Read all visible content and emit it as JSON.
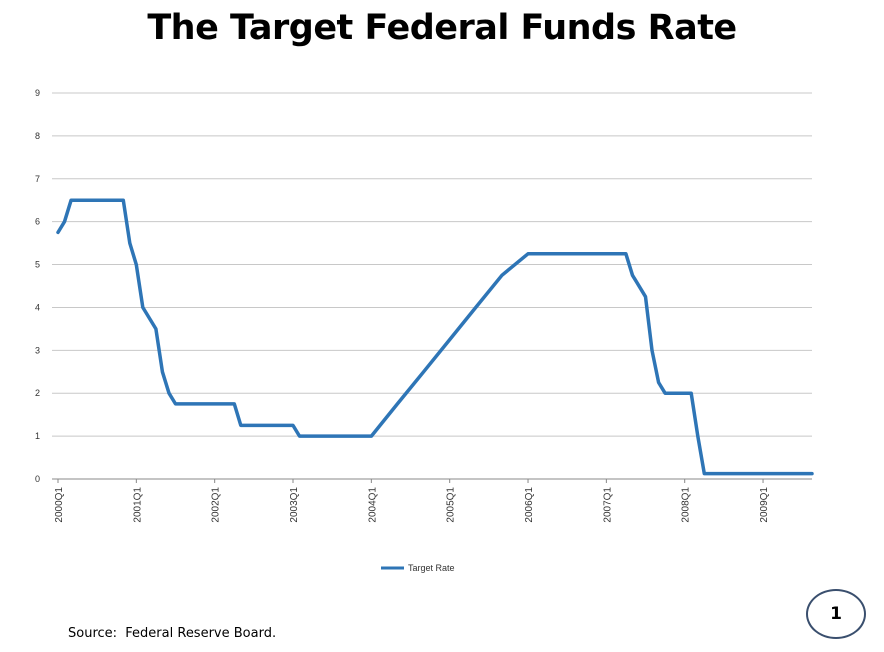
{
  "title": "The Target Federal Funds Rate",
  "source": "Source:  Federal Reserve Board.",
  "page_number": "1",
  "colors": {
    "series": "#2e75b6",
    "grid": "#c8c8c8",
    "axis": "#888888"
  },
  "chart_data": {
    "type": "line",
    "title": "The Target Federal Funds Rate",
    "xlabel": "",
    "ylabel": "",
    "ylim": [
      0,
      9
    ],
    "yticks": [
      0,
      1,
      2,
      3,
      4,
      5,
      6,
      7,
      8,
      9
    ],
    "xlim": [
      2000.0,
      2009.625
    ],
    "xticks": [
      {
        "x": 2000.0,
        "label": "2000Q1"
      },
      {
        "x": 2001.0,
        "label": "2001Q1"
      },
      {
        "x": 2002.0,
        "label": "2002Q1"
      },
      {
        "x": 2003.0,
        "label": "2003Q1"
      },
      {
        "x": 2004.0,
        "label": "2004Q1"
      },
      {
        "x": 2005.0,
        "label": "2005Q1"
      },
      {
        "x": 2006.0,
        "label": "2006Q1"
      },
      {
        "x": 2007.0,
        "label": "2007Q1"
      },
      {
        "x": 2008.0,
        "label": "2008Q1"
      },
      {
        "x": 2009.0,
        "label": "2009Q1"
      }
    ],
    "grid": true,
    "legend": "bottom-center",
    "series": [
      {
        "name": "Target Rate",
        "points": [
          [
            2000.0,
            5.75
          ],
          [
            2000.083,
            6.0
          ],
          [
            2000.167,
            6.5
          ],
          [
            2000.833,
            6.5
          ],
          [
            2000.917,
            5.5
          ],
          [
            2001.0,
            5.0
          ],
          [
            2001.083,
            4.0
          ],
          [
            2001.25,
            3.5
          ],
          [
            2001.333,
            2.5
          ],
          [
            2001.417,
            2.0
          ],
          [
            2001.5,
            1.75
          ],
          [
            2002.25,
            1.75
          ],
          [
            2002.333,
            1.25
          ],
          [
            2003.0,
            1.25
          ],
          [
            2003.083,
            1.0
          ],
          [
            2004.0,
            1.0
          ],
          [
            2004.333,
            1.75
          ],
          [
            2004.667,
            2.5
          ],
          [
            2005.0,
            3.25
          ],
          [
            2005.333,
            4.0
          ],
          [
            2005.667,
            4.75
          ],
          [
            2006.0,
            5.25
          ],
          [
            2007.25,
            5.25
          ],
          [
            2007.333,
            4.75
          ],
          [
            2007.5,
            4.25
          ],
          [
            2007.583,
            3.0
          ],
          [
            2007.667,
            2.25
          ],
          [
            2007.75,
            2.0
          ],
          [
            2008.083,
            2.0
          ],
          [
            2008.167,
            1.0
          ],
          [
            2008.25,
            0.125
          ],
          [
            2009.625,
            0.125
          ]
        ]
      }
    ]
  }
}
